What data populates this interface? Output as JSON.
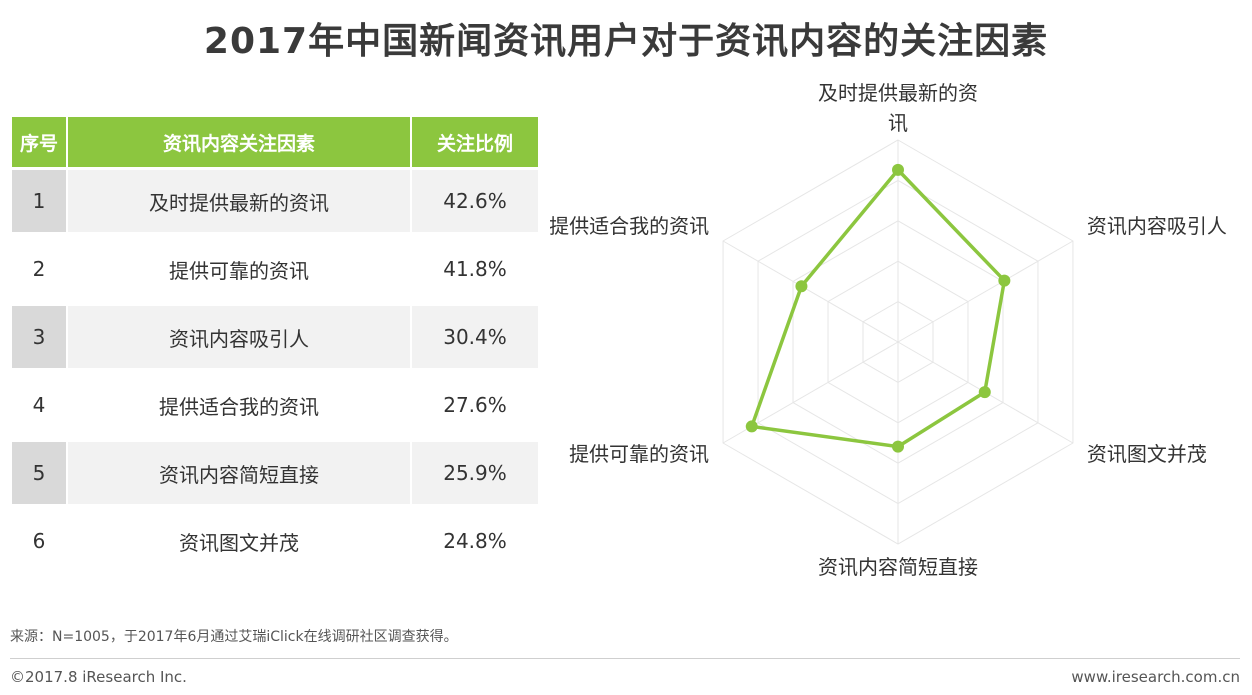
{
  "title": "2017年中国新闻资讯用户对于资讯内容的关注因素",
  "table": {
    "headers": [
      "序号",
      "资讯内容关注因素",
      "关注比例"
    ],
    "rows": [
      {
        "idx": "1",
        "factor": "及时提供最新的资讯",
        "pct": "42.6%"
      },
      {
        "idx": "2",
        "factor": "提供可靠的资讯",
        "pct": "41.8%"
      },
      {
        "idx": "3",
        "factor": "资讯内容吸引人",
        "pct": "30.4%"
      },
      {
        "idx": "4",
        "factor": "提供适合我的资讯",
        "pct": "27.6%"
      },
      {
        "idx": "5",
        "factor": "资讯内容简短直接",
        "pct": "25.9%"
      },
      {
        "idx": "6",
        "factor": "资讯图文并茂",
        "pct": "24.8%"
      }
    ]
  },
  "chart_data": {
    "type": "radar",
    "axes": [
      "及时提供最新的资讯",
      "资讯内容吸引人",
      "资讯图文并茂",
      "资讯内容简短直接",
      "提供可靠的资讯",
      "提供适合我的资讯"
    ],
    "series": [
      {
        "values": [
          42.6,
          30.4,
          24.8,
          25.9,
          41.8,
          27.6
        ]
      }
    ],
    "max": 50,
    "grid_rings": 5,
    "colors": {
      "line": "#8cc63f",
      "grid": "#e6e6e6",
      "label": "#333333"
    }
  },
  "note": "来源：N=1005，于2017年6月通过艾瑞iClick在线调研社区调查获得。",
  "footer": {
    "copyright": "©2017.8 iResearch Inc.",
    "site": "www.iresearch.com.cn"
  },
  "colors": {
    "header_bg": "#8cc63f",
    "accent": "#8cc63f"
  }
}
